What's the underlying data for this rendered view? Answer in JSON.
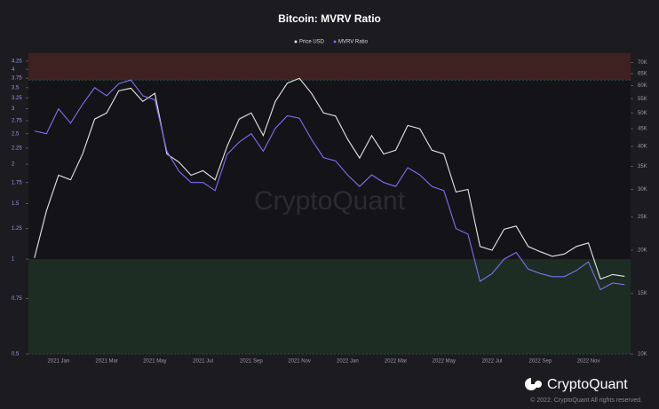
{
  "chart_data": {
    "type": "line",
    "title": "Bitcoin: MVRV Ratio",
    "watermark": "CryptoQuant",
    "brand": "CryptoQuant",
    "copyright": "© 2022. CryptoQuant All rights reserved.",
    "legend": "top",
    "y_log": true,
    "y2_log": true,
    "categories": [
      null,
      null,
      "2021 Jan",
      null,
      null,
      null,
      "2021 Mar",
      null,
      null,
      null,
      "2021 May",
      null,
      null,
      null,
      "2021 Jul",
      null,
      null,
      null,
      "2021 Sep",
      null,
      null,
      null,
      "2021 Nov",
      null,
      null,
      null,
      "2022 Jan",
      null,
      null,
      null,
      "2022 Mar",
      null,
      null,
      null,
      "2022 May",
      null,
      null,
      null,
      "2022 Jul",
      null,
      null,
      null,
      "2022 Sep",
      null,
      null,
      null,
      "2022 Nov",
      null,
      null,
      null
    ],
    "series": [
      {
        "name": "Price USD",
        "color": "#e6e6e6",
        "axis": "y2",
        "values": [
          19000,
          26000,
          33000,
          32000,
          38000,
          48000,
          50000,
          58000,
          59000,
          54000,
          57000,
          38000,
          36000,
          33000,
          34000,
          32000,
          40000,
          48000,
          50000,
          43000,
          54000,
          61000,
          63000,
          57000,
          50000,
          49000,
          42000,
          37000,
          43000,
          38000,
          39000,
          46000,
          45000,
          39000,
          38000,
          29500,
          30000,
          20500,
          20000,
          23000,
          23500,
          20500,
          19800,
          19200,
          19500,
          20500,
          21000,
          16500,
          17000,
          16800
        ]
      },
      {
        "name": "MVRV Ratio",
        "color": "#7d6ef5",
        "values": [
          2.55,
          2.5,
          3.0,
          2.7,
          3.1,
          3.5,
          3.3,
          3.6,
          3.7,
          3.3,
          3.2,
          2.2,
          1.9,
          1.75,
          1.75,
          1.65,
          2.15,
          2.35,
          2.5,
          2.2,
          2.6,
          2.85,
          2.8,
          2.4,
          2.1,
          2.05,
          1.85,
          1.7,
          1.85,
          1.75,
          1.7,
          1.95,
          1.85,
          1.7,
          1.65,
          1.25,
          1.2,
          0.85,
          0.9,
          1.0,
          1.05,
          0.93,
          0.9,
          0.88,
          0.88,
          0.92,
          0.98,
          0.8,
          0.84,
          0.83
        ]
      }
    ],
    "zones": [
      {
        "from": 3.7,
        "to": 4.5,
        "color": "#4a2424"
      },
      {
        "from": 0.5,
        "to": 1,
        "color": "#1f3327"
      }
    ],
    "ylim": [
      0.5,
      4.5
    ],
    "yticks": [
      0.5,
      0.75,
      1,
      1.25,
      1.5,
      1.75,
      2,
      2.25,
      2.5,
      2.75,
      3,
      3.25,
      3.5,
      3.75,
      4,
      4.25
    ],
    "y2lim": [
      10000,
      74500
    ],
    "y2ticks": [
      {
        "value": 10000,
        "label": "10K"
      },
      {
        "value": 15000,
        "label": "15K"
      },
      {
        "value": 20000,
        "label": "20K"
      },
      {
        "value": 25000,
        "label": "25K"
      },
      {
        "value": 30000,
        "label": "30K"
      },
      {
        "value": 35000,
        "label": "35K"
      },
      {
        "value": 40000,
        "label": "40K"
      },
      {
        "value": 45000,
        "label": "45K"
      },
      {
        "value": 50000,
        "label": "50K"
      },
      {
        "value": 55000,
        "label": "55K"
      },
      {
        "value": 60000,
        "label": "60K"
      },
      {
        "value": 65000,
        "label": "65K"
      },
      {
        "value": 70000,
        "label": "70K"
      }
    ]
  }
}
